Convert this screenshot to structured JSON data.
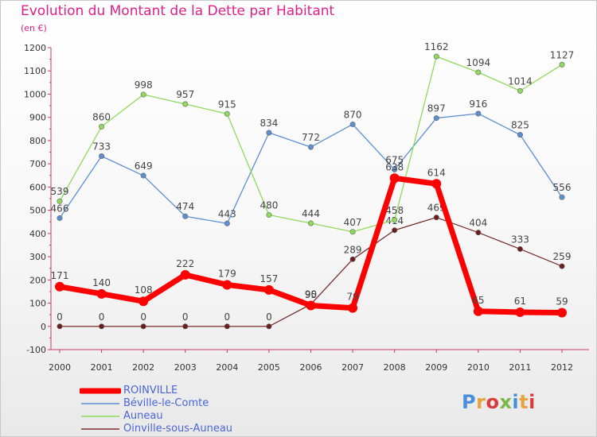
{
  "title": "Evolution du Montant de la Dette par Habitant",
  "unit": "(en €)",
  "logo": "Proxiti",
  "chart_data": {
    "type": "line",
    "x": [
      "2000",
      "2001",
      "2002",
      "2003",
      "2004",
      "2005",
      "2006",
      "2007",
      "2008",
      "2009",
      "2010",
      "2011",
      "2012"
    ],
    "ylim": [
      -100,
      1200
    ],
    "yticks": [
      -100,
      0,
      100,
      200,
      300,
      400,
      500,
      600,
      700,
      800,
      900,
      1000,
      1100,
      1200
    ],
    "grid": false,
    "legend": "bottom-left",
    "series": [
      {
        "name": "ROINVILLE",
        "color": "#ff0000",
        "width": 7,
        "values": [
          171,
          140,
          108,
          222,
          179,
          157,
          90,
          79,
          638,
          614,
          65,
          61,
          59
        ]
      },
      {
        "name": "Béville-le-Comte",
        "color": "#5b8fd0",
        "width": 1.3,
        "values": [
          466,
          733,
          649,
          474,
          443,
          834,
          772,
          870,
          675,
          897,
          916,
          825,
          556
        ]
      },
      {
        "name": "Auneau",
        "color": "#8fda5c",
        "width": 1.3,
        "values": [
          539,
          860,
          998,
          957,
          915,
          480,
          444,
          407,
          458,
          1162,
          1094,
          1014,
          1127
        ]
      },
      {
        "name": "Oinville-sous-Auneau",
        "color": "#7a2e2e",
        "width": 1.3,
        "values": [
          0,
          0,
          0,
          0,
          0,
          0,
          95,
          289,
          414,
          469,
          404,
          333,
          259
        ]
      }
    ]
  }
}
